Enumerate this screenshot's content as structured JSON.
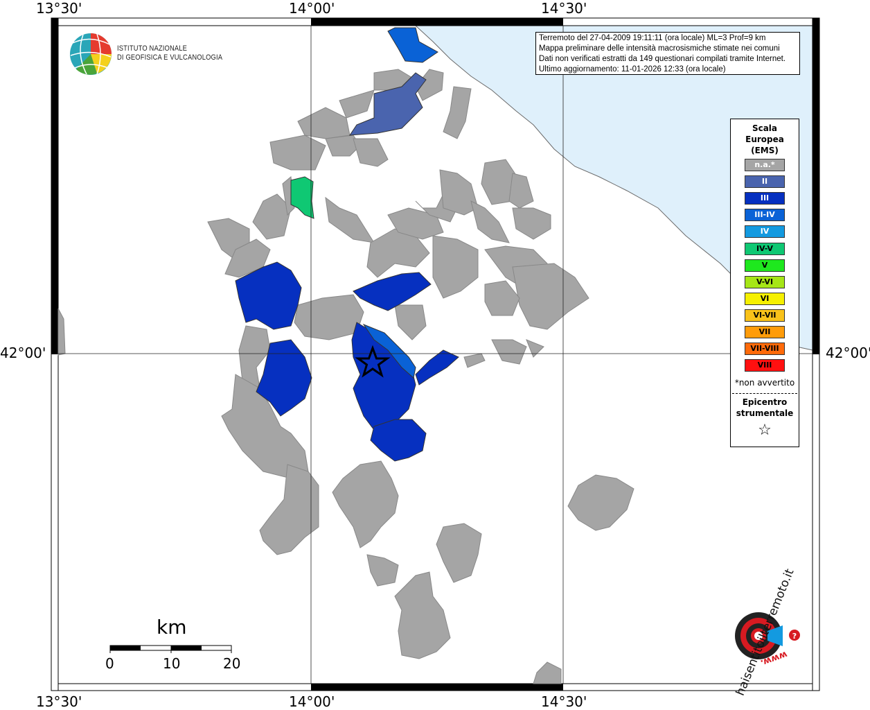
{
  "map": {
    "title_lines": [
      "Terremoto del 27-04-2009 19:11:11 (ora locale) ML=3 Prof=9 km",
      "Mappa preliminare delle intensità macrosismiche stimate nei comuni",
      "Dati non verificati estratti da 149 questionari compilati tramite Internet.",
      "Ultimo aggiornamento: 11-01-2026 12:33 (ora locale)"
    ],
    "coords": {
      "top": [
        "13°30'",
        "14°00'",
        "14°30'"
      ],
      "bottom": [
        "13°30'",
        "14°00'",
        "14°30'"
      ],
      "left": "42°00'",
      "right": "42°00'"
    },
    "colors": {
      "sea": "#dff0fb",
      "land": "#ffffff",
      "na": "#a5a5a5",
      "II": "#4a64ae",
      "III": "#0630c0",
      "III-IV": "#0a62d6",
      "IV": "#139ae0",
      "IV-V": "#0fc873",
      "V": "#1ee81e",
      "V-VI": "#a6e617",
      "VI": "#f6f000",
      "VI-VII": "#f9c21a",
      "VII": "#ff9c0a",
      "VII-VIII": "#ff6a0a",
      "VIII": "#ff1010"
    }
  },
  "logo": {
    "institute_line1": "ISTITUTO NAZIONALE",
    "institute_line2": "DI GEOFISICA E VULCANOLOGIA",
    "site_brand": "haisentitoilterremoto.it",
    "site_prefix": "www."
  },
  "legend": {
    "title_lines": [
      "Scala",
      "Europea",
      "(EMS)"
    ],
    "items": [
      {
        "label": "n.a.*",
        "color": "#a5a5a5",
        "text_color": "#ffffff"
      },
      {
        "label": "II",
        "color": "#4a64ae",
        "text_color": "#ffffff"
      },
      {
        "label": "III",
        "color": "#0630c0",
        "text_color": "#ffffff"
      },
      {
        "label": "III-IV",
        "color": "#0a62d6",
        "text_color": "#ffffff"
      },
      {
        "label": "IV",
        "color": "#139ae0",
        "text_color": "#ffffff"
      },
      {
        "label": "IV-V",
        "color": "#0fc873",
        "text_color": "#000000"
      },
      {
        "label": "V",
        "color": "#1ee81e",
        "text_color": "#000000"
      },
      {
        "label": "V-VI",
        "color": "#a6e617",
        "text_color": "#000000"
      },
      {
        "label": "VI",
        "color": "#f6f000",
        "text_color": "#000000"
      },
      {
        "label": "VI-VII",
        "color": "#f9c21a",
        "text_color": "#000000"
      },
      {
        "label": "VII",
        "color": "#ff9c0a",
        "text_color": "#000000"
      },
      {
        "label": "VII-VIII",
        "color": "#ff6a0a",
        "text_color": "#000000"
      },
      {
        "label": "VIII",
        "color": "#ff1010",
        "text_color": "#000000"
      }
    ],
    "note": "*non avvertito",
    "epicenter_lines": [
      "Epicentro",
      "strumentale"
    ],
    "epicenter_symbol": "☆"
  },
  "scale_bar": {
    "unit": "km",
    "ticks": [
      "0",
      "10",
      "20"
    ]
  }
}
